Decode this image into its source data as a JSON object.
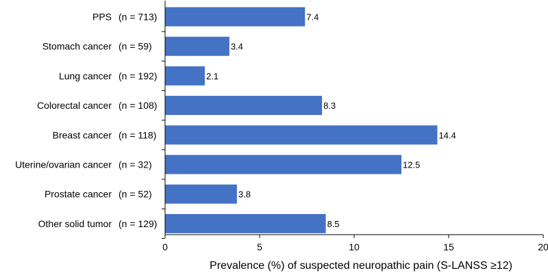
{
  "chart_data": {
    "type": "bar",
    "orientation": "horizontal",
    "categories": [
      "PPS",
      "Stomach cancer",
      "Lung cancer",
      "Colorectal cancer",
      "Breast cancer",
      "Uterine/ovarian cancer",
      "Prostate cancer",
      "Other solid tumor"
    ],
    "sample_sizes": [
      "(n = 713)",
      "(n = 59)",
      "(n = 192)",
      "(n = 108)",
      "(n = 118)",
      "(n = 32)",
      "(n = 52)",
      "(n = 129)"
    ],
    "values": [
      7.4,
      3.4,
      2.1,
      8.3,
      14.4,
      12.5,
      3.8,
      8.5
    ],
    "value_labels": [
      "7.4",
      "3.4",
      "2.1",
      "8.3",
      "14.4",
      "12.5",
      "3.8",
      "8.5"
    ],
    "xlabel": "Prevalence (%) of suspected neuropathic pain (S-LANSS ≥12)",
    "ylabel": "",
    "xlim": [
      0,
      20
    ],
    "xticks": [
      0,
      5,
      10,
      15,
      20
    ],
    "xtick_labels": [
      "0",
      "5",
      "10",
      "15",
      "20"
    ],
    "grid": false,
    "bar_color": "#4472C4"
  }
}
